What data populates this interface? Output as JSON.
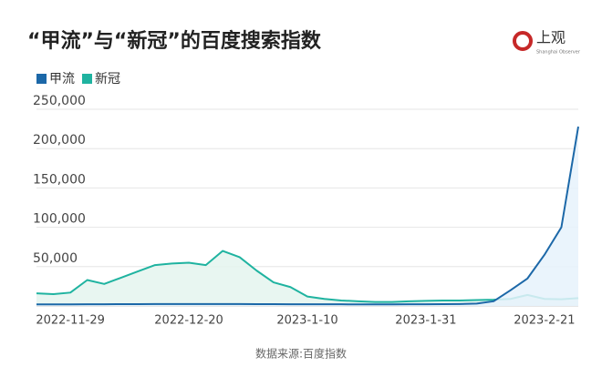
{
  "chart_data": {
    "type": "line",
    "title": "“甲流”与“新冠”的百度搜索指数",
    "source": "数据来源:百度指数",
    "categories": [
      null,
      null,
      "2022-11-29",
      null,
      null,
      null,
      null,
      null,
      null,
      "2022-12-20",
      null,
      null,
      null,
      null,
      null,
      null,
      "2023-1-10",
      null,
      null,
      null,
      null,
      null,
      null,
      "2023-1-31",
      null,
      null,
      null,
      null,
      null,
      null,
      "2023-2-21",
      null,
      null
    ],
    "series": [
      {
        "name": "甲流",
        "color": "#1c68a8",
        "fill": "#e6f2fb",
        "values": [
          2000,
          2000,
          2000,
          2200,
          2200,
          2300,
          2300,
          2400,
          2400,
          2500,
          2500,
          2400,
          2400,
          2300,
          2300,
          2200,
          2200,
          2100,
          2100,
          2000,
          2000,
          2000,
          2100,
          2200,
          2300,
          2500,
          3000,
          6000,
          20000,
          35000,
          65000,
          100000,
          228000
        ]
      },
      {
        "name": "新冠",
        "color": "#1fb3a0",
        "fill": "#e4f5ef",
        "values": [
          16000,
          15000,
          17000,
          33000,
          28000,
          36000,
          44000,
          52000,
          54000,
          55000,
          52000,
          70000,
          62000,
          45000,
          30000,
          24000,
          12000,
          9000,
          7000,
          6000,
          5000,
          5000,
          6000,
          6500,
          7000,
          7000,
          7500,
          8000,
          9000,
          14000,
          9000,
          8500,
          10000
        ]
      }
    ],
    "ylim": [
      0,
      260000
    ],
    "yticks": [
      {
        "value": 50000,
        "label": "50,000"
      },
      {
        "value": 100000,
        "label": "100,000"
      },
      {
        "value": 150000,
        "label": "150,000"
      },
      {
        "value": 200000,
        "label": "200,000"
      },
      {
        "value": 250000,
        "label": "250,000"
      }
    ],
    "grid": true
  },
  "logo": {
    "text": "上观",
    "subtitle": "Shanghai Observer"
  }
}
